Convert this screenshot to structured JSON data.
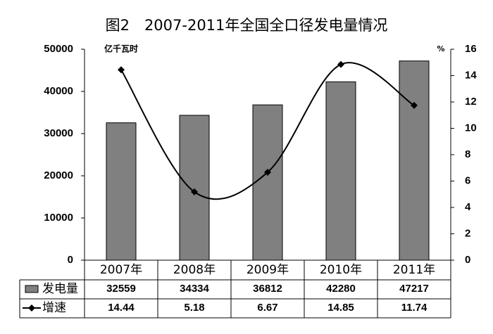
{
  "chart_data": {
    "type": "bar",
    "title": "图2　2007-2011年全国全口径发电量情况",
    "y_label": "亿千瓦时",
    "y2_label": "%",
    "categories": [
      "2007年",
      "2008年",
      "2009年",
      "2010年",
      "2011年"
    ],
    "series": [
      {
        "name": "发电量",
        "color": "#808080",
        "values": [
          32559,
          34334,
          36812,
          42280,
          47217
        ]
      },
      {
        "name": "增速",
        "color": "#000000",
        "type": "line",
        "axis": "y2",
        "values": [
          14.44,
          5.18,
          6.67,
          14.85,
          11.74
        ]
      }
    ],
    "ylim": [
      0,
      50000
    ],
    "yticks": [
      0,
      10000,
      20000,
      30000,
      40000,
      50000
    ],
    "y2lim": [
      0,
      16
    ],
    "y2ticks": [
      0,
      2,
      4,
      6,
      8,
      10,
      12,
      14,
      16
    ]
  }
}
